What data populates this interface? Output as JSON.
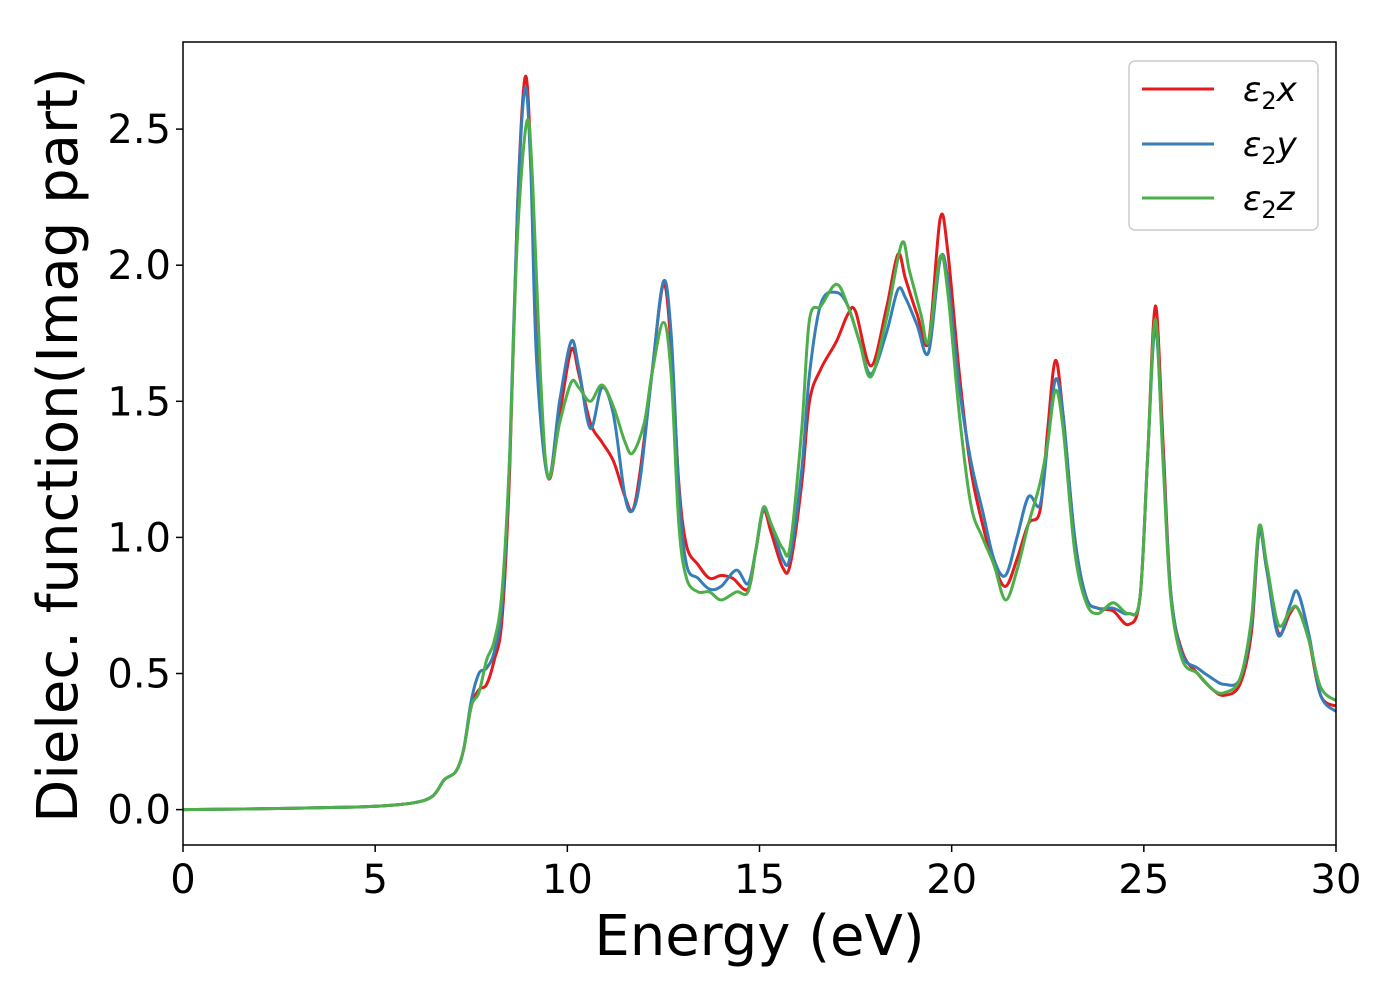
{
  "chart_data": {
    "type": "line",
    "title": "",
    "xlabel": "Energy (eV)",
    "ylabel": "Dielec. function(Imag part)",
    "xlim": [
      0,
      30
    ],
    "ylim": [
      -0.13,
      2.82
    ],
    "xticks": [
      0,
      5,
      10,
      15,
      20,
      25,
      30
    ],
    "xtick_labels": [
      "0",
      "5",
      "10",
      "15",
      "20",
      "25",
      "30"
    ],
    "yticks": [
      0.0,
      0.5,
      1.0,
      1.5,
      2.0,
      2.5
    ],
    "ytick_labels": [
      "0.0",
      "0.5",
      "1.0",
      "1.5",
      "2.0",
      "2.5"
    ],
    "grid": false,
    "legend": {
      "placement": "top-right",
      "entries": [
        {
          "base": "ε",
          "sub": "2",
          "suffix": "x"
        },
        {
          "base": "ε",
          "sub": "2",
          "suffix": "y"
        },
        {
          "base": "ε",
          "sub": "2",
          "suffix": "z"
        }
      ]
    },
    "series": [
      {
        "key": "x",
        "color": "#e41a1c",
        "points": [
          [
            0,
            0
          ],
          [
            2,
            0.003
          ],
          [
            4,
            0.008
          ],
          [
            5,
            0.012
          ],
          [
            6,
            0.025
          ],
          [
            6.5,
            0.05
          ],
          [
            6.8,
            0.11
          ],
          [
            7.1,
            0.14
          ],
          [
            7.3,
            0.22
          ],
          [
            7.5,
            0.38
          ],
          [
            7.7,
            0.44
          ],
          [
            7.9,
            0.46
          ],
          [
            8.1,
            0.55
          ],
          [
            8.3,
            0.7
          ],
          [
            8.5,
            1.25
          ],
          [
            8.7,
            2.2
          ],
          [
            8.9,
            2.69
          ],
          [
            9.05,
            2.4
          ],
          [
            9.2,
            1.7
          ],
          [
            9.5,
            1.22
          ],
          [
            9.8,
            1.45
          ],
          [
            10.1,
            1.69
          ],
          [
            10.3,
            1.6
          ],
          [
            10.6,
            1.42
          ],
          [
            10.9,
            1.35
          ],
          [
            11.2,
            1.28
          ],
          [
            11.5,
            1.15
          ],
          [
            11.7,
            1.1
          ],
          [
            11.9,
            1.25
          ],
          [
            12.2,
            1.6
          ],
          [
            12.5,
            1.93
          ],
          [
            12.7,
            1.7
          ],
          [
            12.9,
            1.2
          ],
          [
            13.1,
            0.97
          ],
          [
            13.4,
            0.9
          ],
          [
            13.7,
            0.85
          ],
          [
            14.0,
            0.86
          ],
          [
            14.3,
            0.85
          ],
          [
            14.7,
            0.81
          ],
          [
            14.9,
            0.95
          ],
          [
            15.1,
            1.1
          ],
          [
            15.3,
            1.02
          ],
          [
            15.6,
            0.89
          ],
          [
            15.8,
            0.9
          ],
          [
            16.1,
            1.2
          ],
          [
            16.3,
            1.5
          ],
          [
            16.6,
            1.62
          ],
          [
            17.0,
            1.72
          ],
          [
            17.3,
            1.82
          ],
          [
            17.5,
            1.83
          ],
          [
            17.9,
            1.63
          ],
          [
            18.3,
            1.84
          ],
          [
            18.6,
            2.04
          ],
          [
            18.8,
            1.95
          ],
          [
            19.1,
            1.82
          ],
          [
            19.4,
            1.72
          ],
          [
            19.7,
            2.17
          ],
          [
            19.9,
            2.05
          ],
          [
            20.2,
            1.6
          ],
          [
            20.5,
            1.25
          ],
          [
            20.8,
            1.05
          ],
          [
            21.1,
            0.9
          ],
          [
            21.4,
            0.82
          ],
          [
            21.7,
            0.92
          ],
          [
            22.0,
            1.05
          ],
          [
            22.3,
            1.1
          ],
          [
            22.5,
            1.4
          ],
          [
            22.7,
            1.65
          ],
          [
            22.9,
            1.45
          ],
          [
            23.2,
            1.0
          ],
          [
            23.5,
            0.78
          ],
          [
            23.8,
            0.74
          ],
          [
            24.2,
            0.73
          ],
          [
            24.6,
            0.68
          ],
          [
            24.9,
            0.78
          ],
          [
            25.1,
            1.3
          ],
          [
            25.3,
            1.85
          ],
          [
            25.5,
            1.35
          ],
          [
            25.7,
            0.8
          ],
          [
            26.0,
            0.58
          ],
          [
            26.4,
            0.5
          ],
          [
            26.8,
            0.44
          ],
          [
            27.1,
            0.42
          ],
          [
            27.5,
            0.46
          ],
          [
            27.8,
            0.65
          ],
          [
            28.0,
            1.02
          ],
          [
            28.2,
            0.88
          ],
          [
            28.5,
            0.65
          ],
          [
            28.8,
            0.72
          ],
          [
            29.0,
            0.74
          ],
          [
            29.3,
            0.62
          ],
          [
            29.6,
            0.42
          ],
          [
            30.0,
            0.38
          ]
        ]
      },
      {
        "key": "y",
        "color": "#377eb8",
        "points": [
          [
            0,
            0
          ],
          [
            2,
            0.003
          ],
          [
            4,
            0.008
          ],
          [
            5,
            0.012
          ],
          [
            6,
            0.025
          ],
          [
            6.5,
            0.05
          ],
          [
            6.8,
            0.11
          ],
          [
            7.1,
            0.14
          ],
          [
            7.3,
            0.22
          ],
          [
            7.5,
            0.4
          ],
          [
            7.7,
            0.5
          ],
          [
            7.9,
            0.52
          ],
          [
            8.1,
            0.58
          ],
          [
            8.3,
            0.75
          ],
          [
            8.5,
            1.3
          ],
          [
            8.7,
            2.2
          ],
          [
            8.9,
            2.65
          ],
          [
            9.05,
            2.35
          ],
          [
            9.2,
            1.65
          ],
          [
            9.5,
            1.22
          ],
          [
            9.8,
            1.5
          ],
          [
            10.1,
            1.72
          ],
          [
            10.3,
            1.62
          ],
          [
            10.6,
            1.4
          ],
          [
            10.9,
            1.55
          ],
          [
            11.2,
            1.45
          ],
          [
            11.5,
            1.15
          ],
          [
            11.7,
            1.1
          ],
          [
            11.9,
            1.22
          ],
          [
            12.2,
            1.6
          ],
          [
            12.5,
            1.94
          ],
          [
            12.7,
            1.75
          ],
          [
            12.9,
            1.18
          ],
          [
            13.1,
            0.9
          ],
          [
            13.4,
            0.85
          ],
          [
            13.7,
            0.81
          ],
          [
            14.0,
            0.82
          ],
          [
            14.4,
            0.88
          ],
          [
            14.7,
            0.83
          ],
          [
            14.9,
            0.95
          ],
          [
            15.1,
            1.1
          ],
          [
            15.3,
            1.05
          ],
          [
            15.6,
            0.92
          ],
          [
            15.8,
            0.93
          ],
          [
            16.1,
            1.25
          ],
          [
            16.3,
            1.6
          ],
          [
            16.6,
            1.86
          ],
          [
            17.0,
            1.9
          ],
          [
            17.3,
            1.85
          ],
          [
            17.6,
            1.72
          ],
          [
            17.9,
            1.6
          ],
          [
            18.3,
            1.75
          ],
          [
            18.6,
            1.91
          ],
          [
            18.8,
            1.88
          ],
          [
            19.1,
            1.78
          ],
          [
            19.4,
            1.68
          ],
          [
            19.7,
            2.02
          ],
          [
            19.9,
            1.95
          ],
          [
            20.2,
            1.55
          ],
          [
            20.5,
            1.28
          ],
          [
            20.8,
            1.1
          ],
          [
            21.1,
            0.92
          ],
          [
            21.4,
            0.86
          ],
          [
            21.7,
            1.0
          ],
          [
            22.0,
            1.15
          ],
          [
            22.3,
            1.12
          ],
          [
            22.5,
            1.35
          ],
          [
            22.7,
            1.58
          ],
          [
            22.9,
            1.45
          ],
          [
            23.2,
            1.0
          ],
          [
            23.5,
            0.78
          ],
          [
            23.8,
            0.74
          ],
          [
            24.2,
            0.74
          ],
          [
            24.6,
            0.72
          ],
          [
            24.9,
            0.78
          ],
          [
            25.1,
            1.3
          ],
          [
            25.3,
            1.77
          ],
          [
            25.5,
            1.3
          ],
          [
            25.7,
            0.8
          ],
          [
            26.0,
            0.57
          ],
          [
            26.4,
            0.52
          ],
          [
            26.8,
            0.48
          ],
          [
            27.1,
            0.46
          ],
          [
            27.5,
            0.48
          ],
          [
            27.8,
            0.68
          ],
          [
            28.0,
            1.02
          ],
          [
            28.2,
            0.88
          ],
          [
            28.5,
            0.64
          ],
          [
            28.8,
            0.75
          ],
          [
            29.0,
            0.8
          ],
          [
            29.3,
            0.64
          ],
          [
            29.6,
            0.42
          ],
          [
            30.0,
            0.36
          ]
        ]
      },
      {
        "key": "z",
        "color": "#4daf4a",
        "points": [
          [
            0,
            0
          ],
          [
            2,
            0.003
          ],
          [
            4,
            0.008
          ],
          [
            5,
            0.012
          ],
          [
            6,
            0.025
          ],
          [
            6.5,
            0.05
          ],
          [
            6.8,
            0.11
          ],
          [
            7.1,
            0.14
          ],
          [
            7.3,
            0.22
          ],
          [
            7.5,
            0.38
          ],
          [
            7.7,
            0.43
          ],
          [
            7.9,
            0.55
          ],
          [
            8.1,
            0.62
          ],
          [
            8.3,
            0.8
          ],
          [
            8.5,
            1.3
          ],
          [
            8.7,
            2.1
          ],
          [
            8.95,
            2.53
          ],
          [
            9.1,
            2.3
          ],
          [
            9.3,
            1.6
          ],
          [
            9.5,
            1.22
          ],
          [
            9.8,
            1.42
          ],
          [
            10.1,
            1.57
          ],
          [
            10.3,
            1.55
          ],
          [
            10.6,
            1.5
          ],
          [
            10.9,
            1.56
          ],
          [
            11.2,
            1.48
          ],
          [
            11.5,
            1.35
          ],
          [
            11.7,
            1.31
          ],
          [
            12.0,
            1.42
          ],
          [
            12.2,
            1.6
          ],
          [
            12.5,
            1.79
          ],
          [
            12.7,
            1.6
          ],
          [
            12.9,
            1.05
          ],
          [
            13.1,
            0.85
          ],
          [
            13.4,
            0.8
          ],
          [
            13.7,
            0.8
          ],
          [
            14.0,
            0.77
          ],
          [
            14.4,
            0.8
          ],
          [
            14.7,
            0.8
          ],
          [
            14.9,
            0.95
          ],
          [
            15.1,
            1.11
          ],
          [
            15.3,
            1.05
          ],
          [
            15.6,
            0.96
          ],
          [
            15.8,
            0.97
          ],
          [
            16.1,
            1.4
          ],
          [
            16.3,
            1.8
          ],
          [
            16.6,
            1.85
          ],
          [
            17.0,
            1.93
          ],
          [
            17.3,
            1.85
          ],
          [
            17.6,
            1.72
          ],
          [
            17.9,
            1.59
          ],
          [
            18.3,
            1.8
          ],
          [
            18.7,
            2.08
          ],
          [
            18.9,
            1.98
          ],
          [
            19.2,
            1.82
          ],
          [
            19.4,
            1.72
          ],
          [
            19.7,
            2.03
          ],
          [
            19.9,
            1.9
          ],
          [
            20.2,
            1.45
          ],
          [
            20.5,
            1.12
          ],
          [
            20.8,
            1.0
          ],
          [
            21.1,
            0.9
          ],
          [
            21.4,
            0.77
          ],
          [
            21.7,
            0.88
          ],
          [
            22.0,
            1.05
          ],
          [
            22.3,
            1.2
          ],
          [
            22.5,
            1.35
          ],
          [
            22.7,
            1.54
          ],
          [
            22.9,
            1.4
          ],
          [
            23.2,
            0.95
          ],
          [
            23.5,
            0.76
          ],
          [
            23.8,
            0.72
          ],
          [
            24.2,
            0.76
          ],
          [
            24.6,
            0.72
          ],
          [
            24.9,
            0.78
          ],
          [
            25.1,
            1.3
          ],
          [
            25.3,
            1.8
          ],
          [
            25.5,
            1.28
          ],
          [
            25.7,
            0.78
          ],
          [
            26.0,
            0.55
          ],
          [
            26.4,
            0.5
          ],
          [
            26.8,
            0.44
          ],
          [
            27.1,
            0.43
          ],
          [
            27.5,
            0.48
          ],
          [
            27.8,
            0.7
          ],
          [
            28.0,
            1.04
          ],
          [
            28.2,
            0.9
          ],
          [
            28.5,
            0.68
          ],
          [
            28.8,
            0.73
          ],
          [
            29.0,
            0.74
          ],
          [
            29.3,
            0.62
          ],
          [
            29.6,
            0.45
          ],
          [
            30.0,
            0.4
          ]
        ]
      }
    ]
  }
}
